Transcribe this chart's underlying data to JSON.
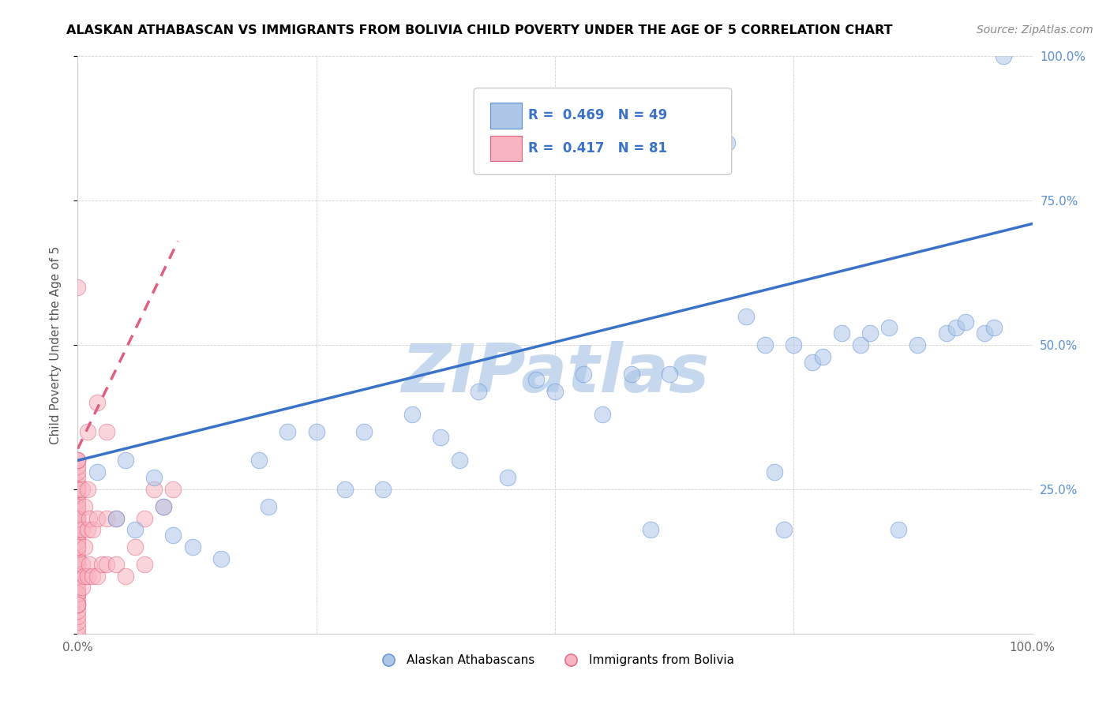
{
  "title": "ALASKAN ATHABASCAN VS IMMIGRANTS FROM BOLIVIA CHILD POVERTY UNDER THE AGE OF 5 CORRELATION CHART",
  "source": "Source: ZipAtlas.com",
  "ylabel": "Child Poverty Under the Age of 5",
  "xlim": [
    0,
    1
  ],
  "ylim": [
    0,
    1
  ],
  "xticks": [
    0.0,
    0.25,
    0.5,
    0.75,
    1.0
  ],
  "xticklabels": [
    "0.0%",
    "",
    "",
    "",
    "100.0%"
  ],
  "yticks": [
    0.0,
    0.25,
    0.5,
    0.75,
    1.0
  ],
  "yticklabels_right": [
    "",
    "25.0%",
    "50.0%",
    "75.0%",
    "100.0%"
  ],
  "blue_color": "#adc6e8",
  "blue_edge_color": "#5b8fd4",
  "pink_color": "#f8b4c0",
  "pink_edge_color": "#e06080",
  "blue_line_color": "#3a72c8",
  "pink_line_color": "#d04060",
  "watermark": "ZIPatlas",
  "watermark_color": "#c5d8ee",
  "blue_R": "0.469",
  "blue_N": "49",
  "pink_R": "0.417",
  "pink_N": "81",
  "legend_blue_label": "R =  0.469   N = 49",
  "legend_pink_label": "R =  0.417   N = 81",
  "bottom_legend_blue": "Alaskan Athabascans",
  "bottom_legend_pink": "Immigrants from Bolivia",
  "blue_scatter_x": [
    0.02,
    0.04,
    0.05,
    0.06,
    0.08,
    0.09,
    0.1,
    0.12,
    0.15,
    0.19,
    0.2,
    0.22,
    0.25,
    0.28,
    0.3,
    0.32,
    0.35,
    0.38,
    0.4,
    0.42,
    0.45,
    0.48,
    0.5,
    0.53,
    0.55,
    0.58,
    0.6,
    0.62,
    0.65,
    0.68,
    0.7,
    0.72,
    0.73,
    0.74,
    0.75,
    0.77,
    0.78,
    0.8,
    0.82,
    0.83,
    0.85,
    0.86,
    0.88,
    0.91,
    0.92,
    0.93,
    0.95,
    0.96,
    0.97
  ],
  "blue_scatter_y": [
    0.28,
    0.2,
    0.3,
    0.18,
    0.27,
    0.22,
    0.17,
    0.15,
    0.13,
    0.3,
    0.22,
    0.35,
    0.35,
    0.25,
    0.35,
    0.25,
    0.38,
    0.34,
    0.3,
    0.42,
    0.27,
    0.44,
    0.42,
    0.45,
    0.38,
    0.45,
    0.18,
    0.45,
    0.82,
    0.85,
    0.55,
    0.5,
    0.28,
    0.18,
    0.5,
    0.47,
    0.48,
    0.52,
    0.5,
    0.52,
    0.53,
    0.18,
    0.5,
    0.52,
    0.53,
    0.54,
    0.52,
    0.53,
    1.0
  ],
  "pink_scatter_x": [
    0.0,
    0.0,
    0.0,
    0.0,
    0.0,
    0.0,
    0.0,
    0.0,
    0.0,
    0.0,
    0.0,
    0.0,
    0.0,
    0.0,
    0.0,
    0.0,
    0.0,
    0.0,
    0.0,
    0.0,
    0.0,
    0.0,
    0.0,
    0.0,
    0.0,
    0.0,
    0.0,
    0.0,
    0.0,
    0.0,
    0.0,
    0.0,
    0.0,
    0.0,
    0.0,
    0.0,
    0.0,
    0.0,
    0.0,
    0.0,
    0.0,
    0.0,
    0.0,
    0.0,
    0.0,
    0.0,
    0.0,
    0.0,
    0.0,
    0.0,
    0.005,
    0.005,
    0.005,
    0.005,
    0.007,
    0.007,
    0.007,
    0.01,
    0.01,
    0.01,
    0.012,
    0.012,
    0.015,
    0.015,
    0.02,
    0.02,
    0.025,
    0.03,
    0.03,
    0.04,
    0.04,
    0.05,
    0.06,
    0.07,
    0.07,
    0.08,
    0.09,
    0.1,
    0.03,
    0.02,
    0.01
  ],
  "pink_scatter_y": [
    0.0,
    0.01,
    0.02,
    0.03,
    0.04,
    0.05,
    0.06,
    0.07,
    0.08,
    0.09,
    0.1,
    0.11,
    0.12,
    0.13,
    0.14,
    0.15,
    0.16,
    0.17,
    0.18,
    0.19,
    0.2,
    0.21,
    0.22,
    0.23,
    0.24,
    0.25,
    0.26,
    0.27,
    0.28,
    0.29,
    0.3,
    0.05,
    0.07,
    0.1,
    0.12,
    0.13,
    0.15,
    0.16,
    0.18,
    0.2,
    0.22,
    0.25,
    0.3,
    0.05,
    0.1,
    0.15,
    0.2,
    0.25,
    0.3,
    0.6,
    0.08,
    0.12,
    0.18,
    0.25,
    0.1,
    0.15,
    0.22,
    0.1,
    0.18,
    0.25,
    0.12,
    0.2,
    0.1,
    0.18,
    0.1,
    0.2,
    0.12,
    0.12,
    0.2,
    0.12,
    0.2,
    0.1,
    0.15,
    0.12,
    0.2,
    0.25,
    0.22,
    0.25,
    0.35,
    0.4,
    0.35
  ],
  "blue_line_x0": 0.0,
  "blue_line_y0": 0.3,
  "blue_line_x1": 1.0,
  "blue_line_y1": 0.71,
  "pink_line_x0": 0.0,
  "pink_line_y0": 0.32,
  "pink_line_x1": 0.105,
  "pink_line_y1": 0.68
}
